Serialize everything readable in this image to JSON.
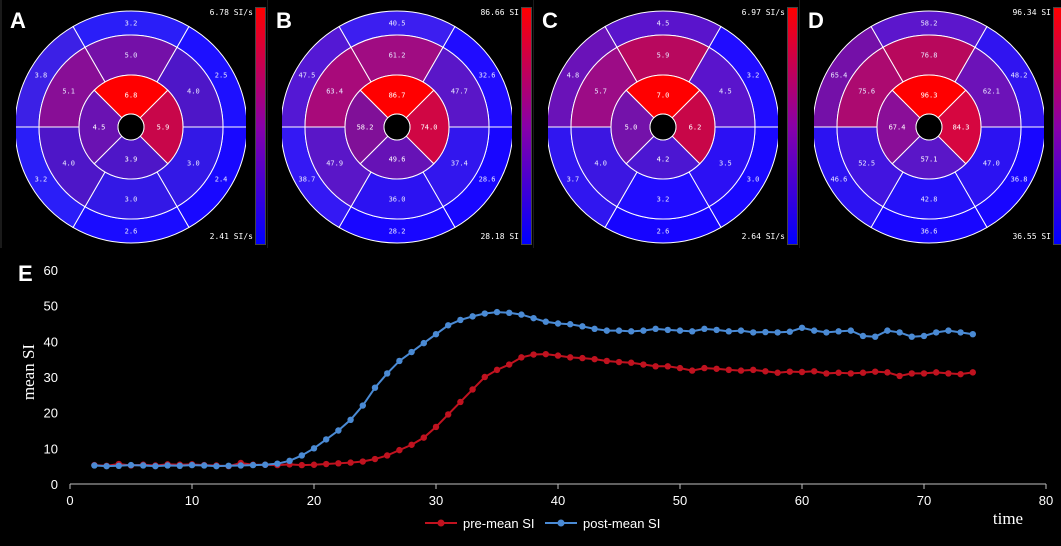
{
  "bullseyes": [
    {
      "letter": "A",
      "max": "6.78 SI/s",
      "min": "2.41 SI/s",
      "basal": [
        "3.2",
        "2.5",
        "2.4",
        "2.6",
        "3.2",
        "3.8"
      ],
      "mid": [
        "5.0",
        "4.0",
        "3.0",
        "3.0",
        "4.0",
        "5.1"
      ],
      "apical": [
        "6.8",
        "5.9",
        "3.9",
        "4.5"
      ],
      "colors": {
        "basal": [
          "#2a1ef8",
          "#1d10ff",
          "#1808ff",
          "#1a0cff",
          "#2a1ef8",
          "#3c20e6"
        ],
        "mid": [
          "#7410a8",
          "#4e16c8",
          "#3318e6",
          "#3318e6",
          "#4e16c8",
          "#880e96"
        ],
        "apical": [
          "#ff0000",
          "#c8064a",
          "#4e16c8",
          "#6a12b2"
        ]
      }
    },
    {
      "letter": "B",
      "max": "86.66 SI",
      "min": "28.18 SI",
      "basal": [
        "40.5",
        "32.6",
        "28.6",
        "28.2",
        "38.7",
        "47.5"
      ],
      "mid": [
        "61.2",
        "47.7",
        "37.4",
        "36.0",
        "47.9",
        "63.4"
      ],
      "apical": [
        "86.7",
        "74.0",
        "49.6",
        "58.2"
      ],
      "colors": {
        "basal": [
          "#3c1ef0",
          "#200cff",
          "#1806ff",
          "#1806ff",
          "#3418f4",
          "#5418d4"
        ],
        "mid": [
          "#a00c82",
          "#5a16c8",
          "#3216ee",
          "#2c12f2",
          "#5a16c8",
          "#a80a7a"
        ],
        "apical": [
          "#ff0000",
          "#d00644",
          "#6612b6",
          "#801098"
        ]
      }
    },
    {
      "letter": "C",
      "max": "6.97 SI/s",
      "min": "2.64 SI/s",
      "basal": [
        "4.5",
        "3.2",
        "3.0",
        "2.6",
        "3.7",
        "4.8"
      ],
      "mid": [
        "5.9",
        "4.5",
        "3.5",
        "3.2",
        "4.0",
        "5.7"
      ],
      "apical": [
        "7.0",
        "6.2",
        "4.2",
        "5.0"
      ],
      "colors": {
        "basal": [
          "#5a14cc",
          "#200cff",
          "#1a08ff",
          "#1604ff",
          "#3016f0",
          "#6a12b8"
        ],
        "mid": [
          "#b8085e",
          "#5a14cc",
          "#2c10f4",
          "#200cff",
          "#3c16e2",
          "#9c0c86"
        ],
        "apical": [
          "#ff0000",
          "#c80648",
          "#4c16d2",
          "#7412aa"
        ]
      }
    },
    {
      "letter": "D",
      "max": "96.34 SI",
      "min": "36.55 SI",
      "basal": [
        "58.2",
        "48.2",
        "36.8",
        "36.6",
        "46.6",
        "65.4"
      ],
      "mid": [
        "76.8",
        "62.1",
        "47.0",
        "42.8",
        "52.5",
        "75.6"
      ],
      "apical": [
        "96.3",
        "84.3",
        "57.1",
        "67.4"
      ],
      "colors": {
        "basal": [
          "#5c16cc",
          "#3014f0",
          "#1806ff",
          "#1806ff",
          "#2c12f2",
          "#7410a8"
        ],
        "mid": [
          "#b8085c",
          "#6c12b8",
          "#2c12f2",
          "#2410f8",
          "#4214e0",
          "#ac0a70"
        ],
        "apical": [
          "#ff0000",
          "#d60640",
          "#5a16c8",
          "#8a0e98"
        ]
      }
    }
  ],
  "chart_data": {
    "type": "line",
    "panel_label": "E",
    "xlabel": "time",
    "ylabel": "mean SI",
    "xlim": [
      0,
      80
    ],
    "ylim": [
      0,
      60
    ],
    "xticks": [
      "0",
      "10",
      "20",
      "30",
      "40",
      "50",
      "60",
      "70",
      "80"
    ],
    "yticks": [
      "0",
      "10",
      "20",
      "30",
      "40",
      "50",
      "60"
    ],
    "legend_position": "bottom-center",
    "series": [
      {
        "name": "pre-mean SI",
        "color": "#c0121f",
        "x": [
          2,
          3,
          4,
          5,
          6,
          7,
          8,
          9,
          10,
          11,
          12,
          13,
          14,
          15,
          16,
          17,
          18,
          19,
          20,
          21,
          22,
          23,
          24,
          25,
          26,
          27,
          28,
          29,
          30,
          31,
          32,
          33,
          34,
          35,
          36,
          37,
          38,
          39,
          40,
          41,
          42,
          43,
          44,
          45,
          46,
          47,
          48,
          49,
          50,
          51,
          52,
          53,
          54,
          55,
          56,
          57,
          58,
          59,
          60,
          61,
          62,
          63,
          64,
          65,
          66,
          67,
          68,
          69,
          70,
          71,
          72,
          73,
          74
        ],
        "y": [
          5.3,
          5.1,
          5.6,
          5.2,
          5.4,
          5.2,
          5.5,
          5.4,
          5.5,
          5.3,
          5.2,
          5.0,
          5.9,
          5.4,
          5.4,
          5.3,
          5.5,
          5.3,
          5.4,
          5.6,
          5.8,
          6.0,
          6.3,
          7.0,
          8.0,
          9.5,
          11.0,
          13.0,
          16.0,
          19.5,
          23.0,
          26.5,
          30.0,
          32.0,
          33.5,
          35.5,
          36.3,
          36.4,
          36.0,
          35.5,
          35.3,
          35.0,
          34.5,
          34.2,
          34.0,
          33.5,
          33.0,
          33.0,
          32.5,
          31.8,
          32.5,
          32.3,
          32.0,
          31.8,
          32.0,
          31.6,
          31.2,
          31.5,
          31.4,
          31.6,
          31.0,
          31.2,
          31.0,
          31.2,
          31.5,
          31.3,
          30.3,
          31.0,
          31.0,
          31.3,
          31.0,
          30.8,
          31.3
        ]
      },
      {
        "name": "post-mean SI",
        "color": "#4a8ad4",
        "x": [
          2,
          3,
          4,
          5,
          6,
          7,
          8,
          9,
          10,
          11,
          12,
          13,
          14,
          15,
          16,
          17,
          18,
          19,
          20,
          21,
          22,
          23,
          24,
          25,
          26,
          27,
          28,
          29,
          30,
          31,
          32,
          33,
          34,
          35,
          36,
          37,
          38,
          39,
          40,
          41,
          42,
          43,
          44,
          45,
          46,
          47,
          48,
          49,
          50,
          51,
          52,
          53,
          54,
          55,
          56,
          57,
          58,
          59,
          60,
          61,
          62,
          63,
          64,
          65,
          66,
          67,
          68,
          69,
          70,
          71,
          72,
          73,
          74
        ],
        "y": [
          5.2,
          5.0,
          5.1,
          5.3,
          5.2,
          5.0,
          5.2,
          5.1,
          5.3,
          5.2,
          5.0,
          5.1,
          5.2,
          5.3,
          5.4,
          5.7,
          6.5,
          8.0,
          10.0,
          12.5,
          15.0,
          18.0,
          22.0,
          27.0,
          31.0,
          34.5,
          37.0,
          39.5,
          42.0,
          44.5,
          46.0,
          47.0,
          47.8,
          48.2,
          48.0,
          47.5,
          46.5,
          45.5,
          45.0,
          44.8,
          44.2,
          43.5,
          43.0,
          43.0,
          42.8,
          43.0,
          43.5,
          43.2,
          43.0,
          42.8,
          43.5,
          43.2,
          42.8,
          43.0,
          42.5,
          42.6,
          42.5,
          42.7,
          43.8,
          43.0,
          42.5,
          42.8,
          43.0,
          41.5,
          41.3,
          43.0,
          42.5,
          41.3,
          41.5,
          42.5,
          43.0,
          42.5,
          42.0
        ]
      }
    ]
  }
}
